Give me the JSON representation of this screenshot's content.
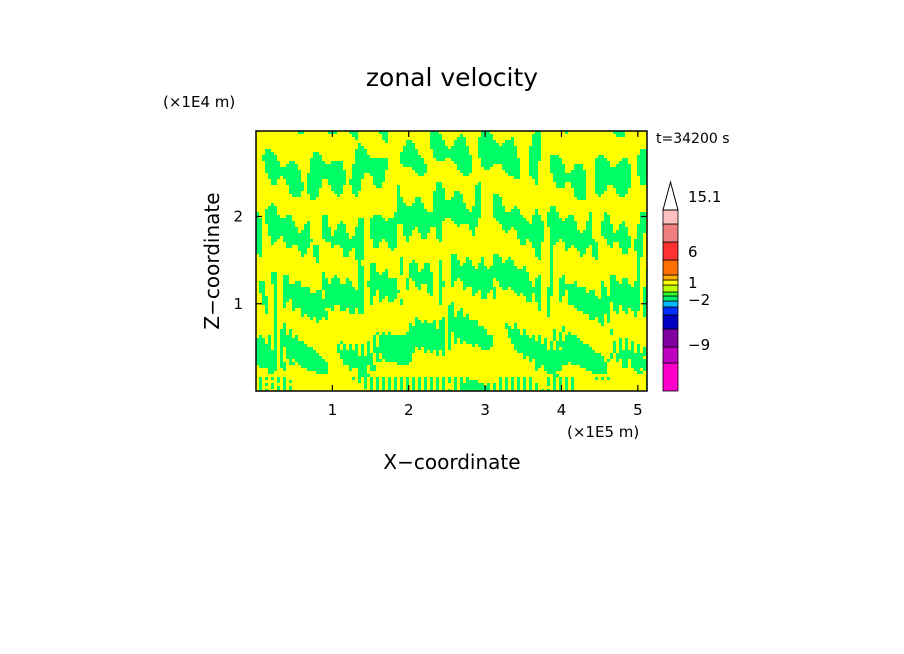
{
  "chart_data": {
    "type": "heatmap",
    "title": "zonal velocity",
    "xlabel": "X−coordinate",
    "ylabel": "Z−coordinate",
    "x_unit": "(×1E5 m)",
    "y_unit": "(×1E4 m)",
    "annotation": "t=34200 s",
    "xlim": [
      0,
      5.12
    ],
    "ylim": [
      0,
      2.98
    ],
    "x_ticks": [
      1,
      2,
      3,
      4,
      5
    ],
    "x_tick_labels": [
      "1",
      "2",
      "3",
      "4",
      "5"
    ],
    "y_ticks": [
      1,
      2
    ],
    "y_tick_labels": [
      "1",
      "2"
    ],
    "colorbar": {
      "levels": [
        {
          "color": "#ff00cc"
        },
        {
          "color": "#c000c0"
        },
        {
          "color": "#8000a0"
        },
        {
          "color": "#0000c0"
        },
        {
          "color": "#0030ff"
        },
        {
          "color": "#00b8ff"
        },
        {
          "color": "#00f070"
        },
        {
          "color": "#30ff30"
        },
        {
          "color": "#c0ff00"
        },
        {
          "color": "#ffff00"
        },
        {
          "color": "#ffb000"
        },
        {
          "color": "#ff7000"
        },
        {
          "color": "#ff3030"
        },
        {
          "color": "#f08080"
        },
        {
          "color": "#ffc0c0"
        }
      ],
      "labels": [
        {
          "text": "15.1",
          "value": 15.1
        },
        {
          "text": "6",
          "value": 6
        },
        {
          "text": "1",
          "value": 1
        },
        {
          "text": "−2",
          "value": -2
        },
        {
          "text": "−9",
          "value": -9
        }
      ]
    },
    "field_colors": {
      "positive": "#ffff00",
      "near_zero": "#c0ff00",
      "negative": "#00ff66"
    },
    "grid": false
  }
}
